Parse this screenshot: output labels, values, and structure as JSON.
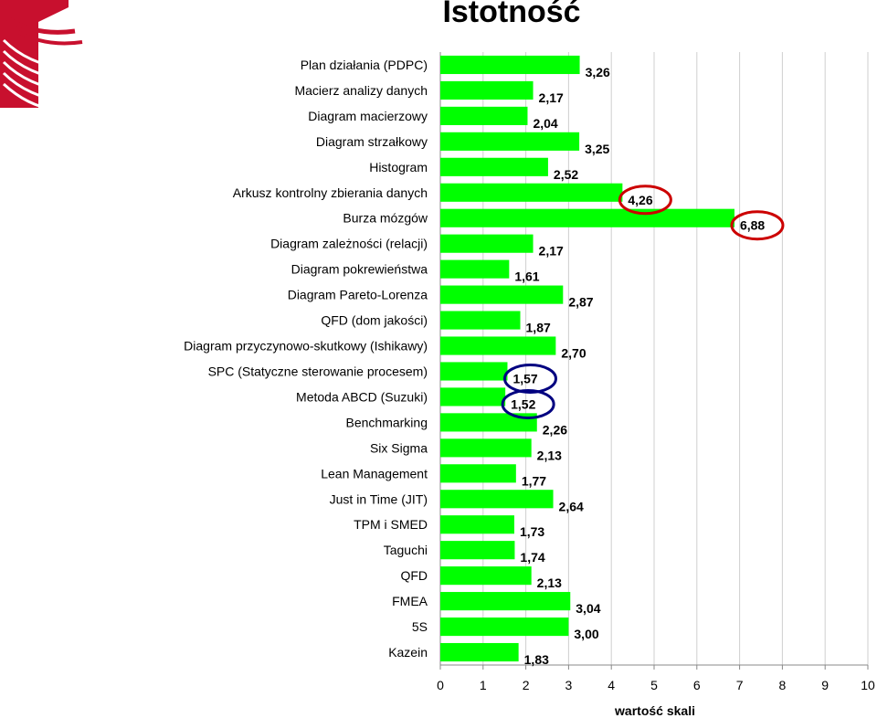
{
  "chart_data": {
    "type": "bar",
    "orientation": "horizontal",
    "title": "Istotność",
    "xlabel": "wartość skali",
    "ylabel": "",
    "xlim": [
      0,
      10
    ],
    "xticks": [
      "0",
      "1",
      "2",
      "3",
      "4",
      "5",
      "6",
      "7",
      "8",
      "9",
      "10"
    ],
    "grid": true,
    "bar_color": "#00ff00",
    "categories": [
      "Plan działania (PDPC)",
      "Macierz analizy danych",
      "Diagram macierzowy",
      "Diagram strzałkowy",
      "Histogram",
      "Arkusz kontrolny zbierania danych",
      "Burza mózgów",
      "Diagram zależności (relacji)",
      "Diagram pokrewieństwa",
      "Diagram Pareto-Lorenza",
      "QFD (dom jakości)",
      "Diagram przyczynowo-skutkowy (Ishikawy)",
      "SPC (Statyczne sterowanie procesem)",
      "Metoda ABCD (Suzuki)",
      "Benchmarking",
      "Six Sigma",
      "Lean Management",
      "Just in Time (JIT)",
      "TPM i SMED",
      "Taguchi",
      "QFD",
      "FMEA",
      "5S",
      "Kazein"
    ],
    "values": [
      3.26,
      2.17,
      2.04,
      3.25,
      2.52,
      4.26,
      6.88,
      2.17,
      1.61,
      2.87,
      1.87,
      2.7,
      1.57,
      1.52,
      2.26,
      2.13,
      1.77,
      2.64,
      1.73,
      1.74,
      2.13,
      3.04,
      3.0,
      1.83
    ],
    "data_labels": [
      "3,26",
      "2,17",
      "2,04",
      "3,25",
      "2,52",
      "4,26",
      "6,88",
      "2,17",
      "1,61",
      "2,87",
      "1,87",
      "2,70",
      "1,57",
      "1,52",
      "2,26",
      "2,13",
      "1,77",
      "2,64",
      "1,73",
      "1,74",
      "2,13",
      "3,04",
      "3,00",
      "1,83"
    ],
    "annotations": [
      {
        "category_index": 5,
        "shape": "ellipse",
        "color": "#cc0000"
      },
      {
        "category_index": 6,
        "shape": "ellipse",
        "color": "#cc0000"
      },
      {
        "category_index": 12,
        "shape": "ellipse",
        "color": "#000080"
      },
      {
        "category_index": 13,
        "shape": "ellipse",
        "color": "#000080"
      }
    ]
  },
  "logo": {
    "colors": [
      "#c8102e",
      "#ffffff"
    ]
  }
}
